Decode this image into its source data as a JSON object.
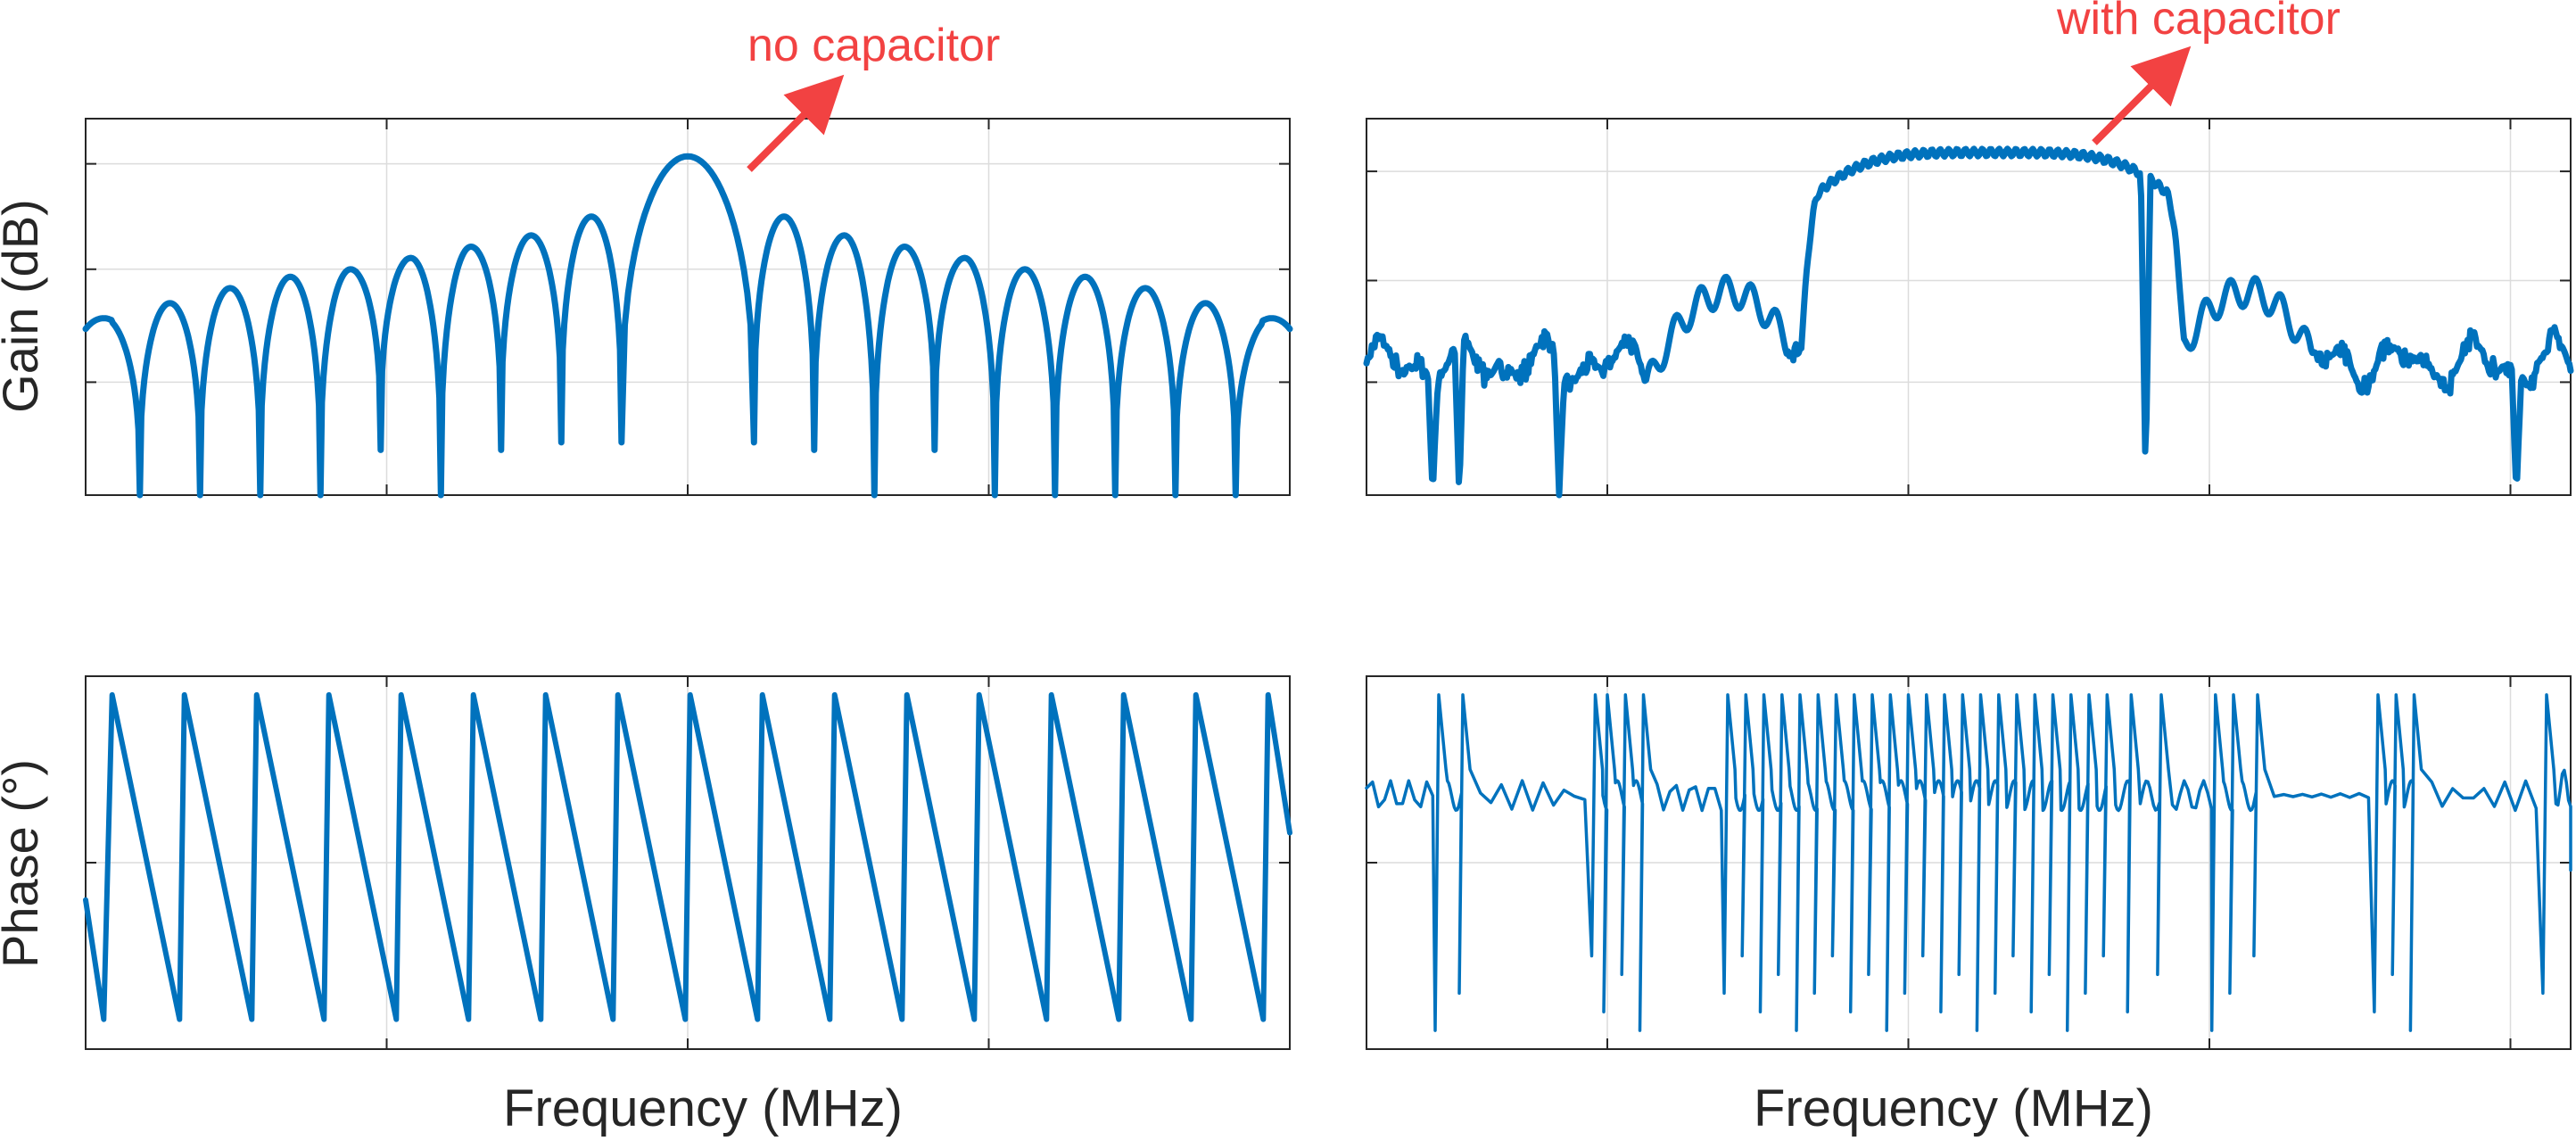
{
  "figure": {
    "ylabel_gain": "Gain (dB)",
    "ylabel_phase": "Phase (°)",
    "xlabel_left": "Frequency (MHz)",
    "xlabel_right": "Frequency (MHz)",
    "annotation_left": "no capacitor",
    "annotation_right": "with capacitor",
    "colors": {
      "line": "#0072BD",
      "annotation": "#F24242",
      "axes": "#262626",
      "grid": "#DCDCDC"
    }
  },
  "chart_data": [
    {
      "id": "gain-no-capacitor",
      "type": "line",
      "panel": "top-left",
      "ylabel": "Gain (dB)",
      "xlim": [
        0,
        1
      ],
      "ylim": [
        0,
        1
      ],
      "tick_labels_shown": false,
      "grid": true,
      "x_gridlines": [
        0.25,
        0.5,
        0.75
      ],
      "y_gridlines": [
        0.3,
        0.6,
        0.88
      ],
      "annotation": "no capacitor",
      "series": [
        {
          "shape": "sinc-lobes",
          "center": 0.5,
          "nulls": [
            0.045,
            0.095,
            0.145,
            0.195,
            0.245,
            0.295,
            0.345,
            0.395,
            0.445,
            0.555,
            0.605,
            0.655,
            0.705,
            0.755,
            0.805,
            0.855,
            0.905,
            0.955
          ],
          "main_lobe_peak": 0.9,
          "side_lobe_peaks": [
            0.47,
            0.51,
            0.55,
            0.58,
            0.6,
            0.63,
            0.66,
            0.69,
            0.74
          ],
          "null_floor": [
            0.0,
            0.0,
            0.0,
            0.0,
            0.12,
            0.0,
            0.12,
            0.14,
            0.14,
            0.14,
            0.12,
            0.0,
            0.12,
            0.0,
            0.0,
            0.0,
            0.0,
            0.0
          ]
        }
      ]
    },
    {
      "id": "phase-no-capacitor",
      "type": "line",
      "panel": "bottom-left",
      "ylabel": "Phase (°)",
      "xlabel": "Frequency (MHz)",
      "xlim": [
        0,
        1
      ],
      "ylim": [
        0,
        1
      ],
      "tick_labels_shown": false,
      "grid": true,
      "x_gridlines": [
        0.25,
        0.5,
        0.75
      ],
      "y_gridlines": [
        0.5
      ],
      "series": [
        {
          "shape": "sawtooth",
          "wrap_points": [
            0.022,
            0.082,
            0.142,
            0.202,
            0.262,
            0.322,
            0.382,
            0.442,
            0.502,
            0.562,
            0.622,
            0.682,
            0.742,
            0.802,
            0.862,
            0.922,
            0.982
          ],
          "high": 0.95,
          "low": 0.08,
          "start_value": 0.4,
          "end_value": 0.58
        }
      ]
    },
    {
      "id": "gain-with-capacitor",
      "type": "line",
      "panel": "top-right",
      "xlim": [
        0,
        1
      ],
      "ylim": [
        0,
        1
      ],
      "tick_labels_shown": false,
      "grid": true,
      "x_gridlines": [
        0.2,
        0.45,
        0.7,
        0.95
      ],
      "y_gridlines": [
        0.3,
        0.57,
        0.86
      ],
      "annotation": "with capacitor",
      "series": [
        {
          "shape": "flat-top-passband",
          "passband": [
            0.4,
            0.64
          ],
          "passband_level": 0.91,
          "shoulders": [
            [
              0.3,
              0.54
            ],
            [
              0.73,
              0.54
            ]
          ],
          "stopband_level": 0.35,
          "deep_nulls_x": [
            0.055,
            0.077,
            0.16,
            0.647,
            0.955
          ],
          "deep_null_floor": [
            0.0,
            0.0,
            0.0,
            0.05,
            0.0
          ]
        }
      ]
    },
    {
      "id": "phase-with-capacitor",
      "type": "line",
      "panel": "bottom-right",
      "xlabel": "Frequency (MHz)",
      "xlim": [
        0,
        1
      ],
      "ylim": [
        0,
        1
      ],
      "tick_labels_shown": false,
      "grid": true,
      "x_gridlines": [
        0.2,
        0.45,
        0.7,
        0.95
      ],
      "y_gridlines": [
        0.5
      ],
      "series": [
        {
          "shape": "phase-wraps",
          "baseline": 0.7,
          "wrap_points": [
            0.06,
            0.08,
            0.19,
            0.2,
            0.215,
            0.23,
            0.3,
            0.315,
            0.33,
            0.345,
            0.36,
            0.375,
            0.39,
            0.405,
            0.42,
            0.435,
            0.45,
            0.465,
            0.48,
            0.495,
            0.51,
            0.525,
            0.54,
            0.555,
            0.57,
            0.585,
            0.6,
            0.615,
            0.635,
            0.66,
            0.705,
            0.72,
            0.74,
            0.84,
            0.855,
            0.87,
            0.98
          ],
          "high": 0.95,
          "low": 0.05
        }
      ]
    }
  ]
}
